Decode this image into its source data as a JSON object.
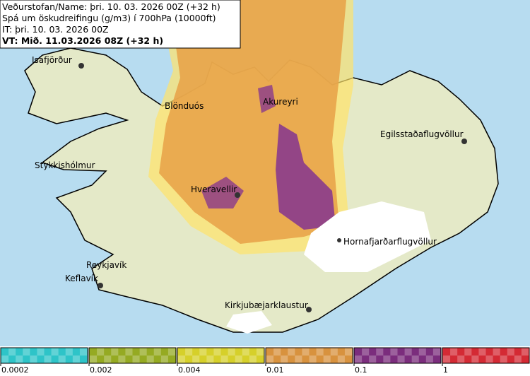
{
  "header": {
    "lines": [
      "Veðurstofan/Name: þri. 10. 03. 2026 00Z (+32 h)",
      "Spá um öskudreifingu (g/m3) í 700hPa (10000ft)",
      "IT: þri. 10. 03. 2026 00Z",
      "VT: Mið. 11.03.2026 08Z (+32 h)"
    ]
  },
  "places": [
    "Isafjörður",
    "Blönduós",
    "Akureyri",
    "Egilsstaðaflugvöllur",
    "Stykkishólmur",
    "Hveravellir",
    "Hornafjarðarflugvöllur",
    "Reykjavík",
    "Keflavík",
    "Kirkjubæjarklaustur"
  ],
  "legend": {
    "colors": [
      "#2ec4c8",
      "#95aa22",
      "#d6d02a",
      "#d8923e",
      "#7b2d7d",
      "#d42a34"
    ],
    "ticks": [
      "0.0002",
      "0.002",
      "0.004",
      "0.01",
      "0.1",
      "1"
    ]
  }
}
